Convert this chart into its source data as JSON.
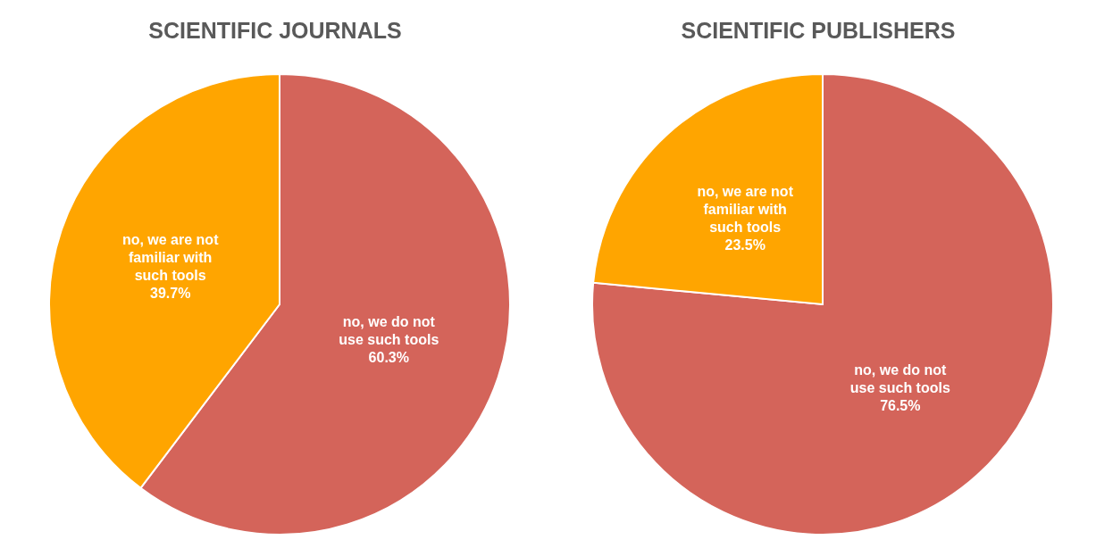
{
  "chart_data": [
    {
      "type": "pie",
      "title": "SCIENTIFIC JOURNALS",
      "categories": [
        "no, we do not use such tools",
        "no, we are not familiar with such tools"
      ],
      "values": [
        60.3,
        39.7
      ],
      "value_labels": [
        "60.3%",
        "39.7%"
      ],
      "colors": [
        "#d4645a",
        "#ffa500"
      ]
    },
    {
      "type": "pie",
      "title": "SCIENTIFIC PUBLISHERS",
      "categories": [
        "no, we do not use such tools",
        "no, we are not familiar with such tools"
      ],
      "values": [
        76.5,
        23.5
      ],
      "value_labels": [
        "76.5%",
        "23.5%"
      ],
      "colors": [
        "#d4645a",
        "#ffa500"
      ]
    }
  ]
}
